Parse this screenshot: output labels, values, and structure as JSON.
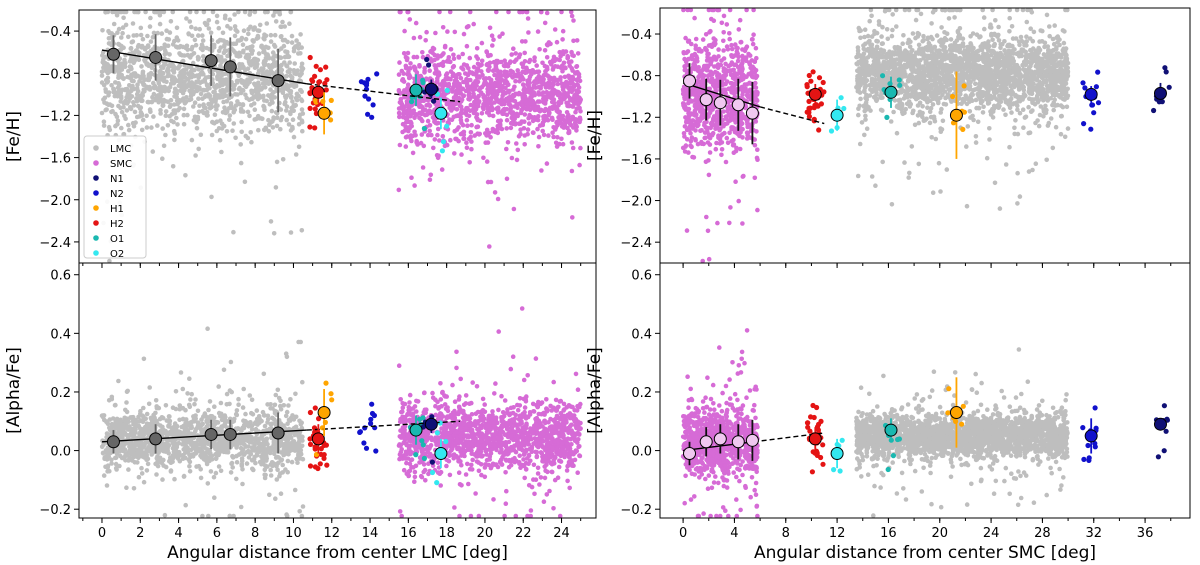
{
  "colors": {
    "LMC": "#bebebe",
    "SMC": "#d66bd6",
    "N1": "#101075",
    "N2": "#1111cc",
    "H1": "#ffa500",
    "H2": "#e41414",
    "O1": "#1ab8b0",
    "O2": "#33e8f0",
    "trend": "#000000"
  },
  "legend": {
    "entries": [
      "LMC",
      "SMC",
      "N1",
      "N2",
      "H1",
      "H2",
      "O1",
      "O2"
    ]
  },
  "chart_data": [
    {
      "type": "scatter",
      "panel": "top-left",
      "xlabel": "",
      "ylabel": "[Fe/H]",
      "xlim": [
        -1.2,
        25.8
      ],
      "ylim": [
        -2.6,
        -0.2
      ],
      "xticks": [
        0,
        2,
        4,
        6,
        8,
        10,
        12,
        14,
        16,
        18,
        20,
        22,
        24
      ],
      "yticks": [
        -0.4,
        -0.8,
        -1.2,
        -1.6,
        -2.0,
        -2.4
      ],
      "ytick_labels": [
        "−0.4",
        "−0.8",
        "−1.2",
        "−1.6",
        "−2.0",
        "−2.4"
      ],
      "legend_position": "lower-left",
      "clouds": [
        {
          "series": "LMC",
          "x": [
            0,
            10.5
          ],
          "ymean": -0.85,
          "spread": 0.35,
          "n": 1400
        },
        {
          "series": "SMC",
          "x": [
            15.5,
            25
          ],
          "ymean": -1.0,
          "spread": 0.3,
          "n": 1400
        }
      ],
      "groups": [
        {
          "series": "H2",
          "x": 11.3,
          "y": -1.0,
          "n": 30
        },
        {
          "series": "H1",
          "x": 11.6,
          "y": -1.18,
          "n": 6
        },
        {
          "series": "N2",
          "x": 13.9,
          "y": -0.98,
          "n": 12
        },
        {
          "series": "O1",
          "x": 16.4,
          "y": -0.97,
          "n": 8
        },
        {
          "series": "N1",
          "x": 17.2,
          "y": -0.98,
          "n": 8
        },
        {
          "series": "O2",
          "x": 17.7,
          "y": -1.18,
          "n": 5
        }
      ],
      "binned_means": [
        {
          "series": "LMC",
          "x": 0.6,
          "y": -0.62,
          "err": 0.18
        },
        {
          "series": "LMC",
          "x": 2.8,
          "y": -0.65,
          "err": 0.22
        },
        {
          "series": "LMC",
          "x": 5.7,
          "y": -0.68,
          "err": 0.24
        },
        {
          "series": "LMC",
          "x": 6.7,
          "y": -0.74,
          "err": 0.28
        },
        {
          "series": "LMC",
          "x": 9.2,
          "y": -0.87,
          "err": 0.3
        },
        {
          "series": "H2",
          "x": 11.3,
          "y": -0.98,
          "err": 0.1
        },
        {
          "series": "H1",
          "x": 11.6,
          "y": -1.18,
          "err": 0.2
        },
        {
          "series": "O1",
          "x": 16.4,
          "y": -0.96,
          "err": 0.15
        },
        {
          "series": "N1",
          "x": 17.2,
          "y": -0.95,
          "err": 0.09
        },
        {
          "series": "O2",
          "x": 17.7,
          "y": -1.18,
          "err": 0.15
        }
      ],
      "fit_solid": [
        [
          0,
          -0.58
        ],
        [
          10.7,
          -0.9
        ]
      ],
      "fit_dashed": [
        [
          10.7,
          -0.9
        ],
        [
          18.7,
          -1.07
        ]
      ]
    },
    {
      "type": "scatter",
      "panel": "bottom-left",
      "xlabel": "Angular distance from center  LMC [deg]",
      "ylabel": "[Alpha/Fe]",
      "xlim": [
        -1.2,
        25.8
      ],
      "ylim": [
        -0.23,
        0.64
      ],
      "xticks": [
        0,
        2,
        4,
        6,
        8,
        10,
        12,
        14,
        16,
        18,
        20,
        22,
        24
      ],
      "yticks": [
        -0.2,
        0.0,
        0.2,
        0.4,
        0.6
      ],
      "ytick_labels": [
        "−0.2",
        "0.0",
        "0.2",
        "0.4",
        "0.6"
      ],
      "clouds": [
        {
          "series": "LMC",
          "x": [
            0,
            10.5
          ],
          "ymean": 0.04,
          "spread": 0.07,
          "n": 1400
        },
        {
          "series": "SMC",
          "x": [
            15.5,
            25
          ],
          "ymean": 0.05,
          "spread": 0.08,
          "n": 1400
        }
      ],
      "groups": [
        {
          "series": "H2",
          "x": 11.3,
          "y": 0.04,
          "n": 30
        },
        {
          "series": "H1",
          "x": 11.6,
          "y": 0.13,
          "n": 6
        },
        {
          "series": "N2",
          "x": 13.9,
          "y": 0.06,
          "n": 12
        },
        {
          "series": "O1",
          "x": 16.4,
          "y": 0.07,
          "n": 8
        },
        {
          "series": "N1",
          "x": 17.2,
          "y": 0.09,
          "n": 8
        },
        {
          "series": "O2",
          "x": 17.7,
          "y": -0.01,
          "n": 5
        }
      ],
      "binned_means": [
        {
          "series": "LMC",
          "x": 0.6,
          "y": 0.03,
          "err": 0.04
        },
        {
          "series": "LMC",
          "x": 2.8,
          "y": 0.04,
          "err": 0.05
        },
        {
          "series": "LMC",
          "x": 5.7,
          "y": 0.055,
          "err": 0.05
        },
        {
          "series": "LMC",
          "x": 6.7,
          "y": 0.055,
          "err": 0.05
        },
        {
          "series": "LMC",
          "x": 9.2,
          "y": 0.06,
          "err": 0.07
        },
        {
          "series": "H2",
          "x": 11.3,
          "y": 0.04,
          "err": 0.05
        },
        {
          "series": "H1",
          "x": 11.6,
          "y": 0.13,
          "err": 0.08
        },
        {
          "series": "O1",
          "x": 16.4,
          "y": 0.07,
          "err": 0.05
        },
        {
          "series": "N1",
          "x": 17.2,
          "y": 0.09,
          "err": 0.03
        },
        {
          "series": "O2",
          "x": 17.7,
          "y": -0.01,
          "err": 0.05
        }
      ],
      "fit_solid": [
        [
          0,
          0.03
        ],
        [
          10.7,
          0.07
        ]
      ],
      "fit_dashed": [
        [
          10.7,
          0.07
        ],
        [
          18.7,
          0.1
        ]
      ]
    },
    {
      "type": "scatter",
      "panel": "top-right",
      "xlabel": "",
      "ylabel": "[Fe/H]",
      "xlim": [
        -1.8,
        39.5
      ],
      "ylim": [
        -2.6,
        -0.15
      ],
      "xticks": [
        0,
        4,
        8,
        12,
        16,
        20,
        24,
        28,
        32,
        36
      ],
      "yticks": [
        -0.4,
        -0.8,
        -1.2,
        -1.6,
        -2.0,
        -2.4
      ],
      "ytick_labels": [
        "−0.4",
        "−0.8",
        "−1.2",
        "−1.6",
        "−2.0",
        "−2.4"
      ],
      "clouds": [
        {
          "series": "SMC",
          "x": [
            0,
            5.8
          ],
          "ymean": -1.0,
          "spread": 0.35,
          "n": 900
        },
        {
          "series": "LMC",
          "x": [
            13.5,
            30
          ],
          "ymean": -0.78,
          "spread": 0.25,
          "n": 2300
        }
      ],
      "groups": [
        {
          "series": "H2",
          "x": 10.3,
          "y": -0.98,
          "n": 30
        },
        {
          "series": "O2",
          "x": 12.0,
          "y": -1.18,
          "n": 5
        },
        {
          "series": "O1",
          "x": 16.2,
          "y": -0.97,
          "n": 8
        },
        {
          "series": "H1",
          "x": 21.3,
          "y": -1.18,
          "n": 6
        },
        {
          "series": "N2",
          "x": 31.8,
          "y": -0.98,
          "n": 12
        },
        {
          "series": "N1",
          "x": 37.2,
          "y": -0.98,
          "n": 8
        }
      ],
      "binned_means": [
        {
          "series": "SMC",
          "x": 0.5,
          "y": -0.85,
          "err": 0.17
        },
        {
          "series": "SMC",
          "x": 1.8,
          "y": -1.03,
          "err": 0.2
        },
        {
          "series": "SMC",
          "x": 2.9,
          "y": -1.06,
          "err": 0.22
        },
        {
          "series": "SMC",
          "x": 4.3,
          "y": -1.08,
          "err": 0.25
        },
        {
          "series": "SMC",
          "x": 5.4,
          "y": -1.16,
          "err": 0.3
        },
        {
          "series": "H2",
          "x": 10.3,
          "y": -0.98,
          "err": 0.1
        },
        {
          "series": "O2",
          "x": 12.0,
          "y": -1.18,
          "err": 0.15
        },
        {
          "series": "O1",
          "x": 16.2,
          "y": -0.96,
          "err": 0.15
        },
        {
          "series": "H1",
          "x": 21.3,
          "y": -1.18,
          "err": 0.42
        },
        {
          "series": "N2",
          "x": 31.8,
          "y": -0.98,
          "err": 0.08
        },
        {
          "series": "N1",
          "x": 37.2,
          "y": -0.97,
          "err": 0.1
        }
      ],
      "fit_solid": [
        [
          0,
          -0.87
        ],
        [
          6,
          -1.1
        ]
      ],
      "fit_dashed": [
        [
          6,
          -1.1
        ],
        [
          11,
          -1.26
        ]
      ]
    },
    {
      "type": "scatter",
      "panel": "bottom-right",
      "xlabel": "Angular distance from center  SMC [deg]",
      "ylabel": "[Alpha/Fe]",
      "xlim": [
        -1.8,
        39.5
      ],
      "ylim": [
        -0.23,
        0.64
      ],
      "xticks": [
        0,
        4,
        8,
        12,
        16,
        20,
        24,
        28,
        32,
        36
      ],
      "yticks": [
        -0.2,
        0.0,
        0.2,
        0.4,
        0.6
      ],
      "ytick_labels": [
        "−0.2",
        "0.0",
        "0.2",
        "0.4",
        "0.6"
      ],
      "clouds": [
        {
          "series": "SMC",
          "x": [
            0,
            5.8
          ],
          "ymean": 0.03,
          "spread": 0.08,
          "n": 900
        },
        {
          "series": "LMC",
          "x": [
            13.5,
            30
          ],
          "ymean": 0.05,
          "spread": 0.05,
          "n": 2300
        }
      ],
      "groups": [
        {
          "series": "H2",
          "x": 10.3,
          "y": 0.04,
          "n": 30
        },
        {
          "series": "O2",
          "x": 12.0,
          "y": -0.01,
          "n": 5
        },
        {
          "series": "O1",
          "x": 16.2,
          "y": 0.07,
          "n": 8
        },
        {
          "series": "H1",
          "x": 21.3,
          "y": 0.13,
          "n": 6
        },
        {
          "series": "N2",
          "x": 31.8,
          "y": 0.06,
          "n": 12
        },
        {
          "series": "N1",
          "x": 37.2,
          "y": 0.09,
          "n": 8
        }
      ],
      "binned_means": [
        {
          "series": "SMC",
          "x": 0.5,
          "y": -0.01,
          "err": 0.04
        },
        {
          "series": "SMC",
          "x": 1.8,
          "y": 0.03,
          "err": 0.05
        },
        {
          "series": "SMC",
          "x": 2.9,
          "y": 0.04,
          "err": 0.05
        },
        {
          "series": "SMC",
          "x": 4.3,
          "y": 0.03,
          "err": 0.06
        },
        {
          "series": "SMC",
          "x": 5.4,
          "y": 0.035,
          "err": 0.07
        },
        {
          "series": "H2",
          "x": 10.3,
          "y": 0.04,
          "err": 0.04
        },
        {
          "series": "O2",
          "x": 12.0,
          "y": -0.01,
          "err": 0.05
        },
        {
          "series": "O1",
          "x": 16.2,
          "y": 0.07,
          "err": 0.04
        },
        {
          "series": "H1",
          "x": 21.3,
          "y": 0.13,
          "err": 0.12
        },
        {
          "series": "N2",
          "x": 31.8,
          "y": 0.05,
          "err": 0.06
        },
        {
          "series": "N1",
          "x": 37.2,
          "y": 0.09,
          "err": 0.02
        }
      ],
      "fit_solid": [
        [
          0,
          0.0
        ],
        [
          5.5,
          0.03
        ]
      ],
      "fit_dashed": [
        [
          5.5,
          0.03
        ],
        [
          11,
          0.06
        ]
      ]
    }
  ]
}
